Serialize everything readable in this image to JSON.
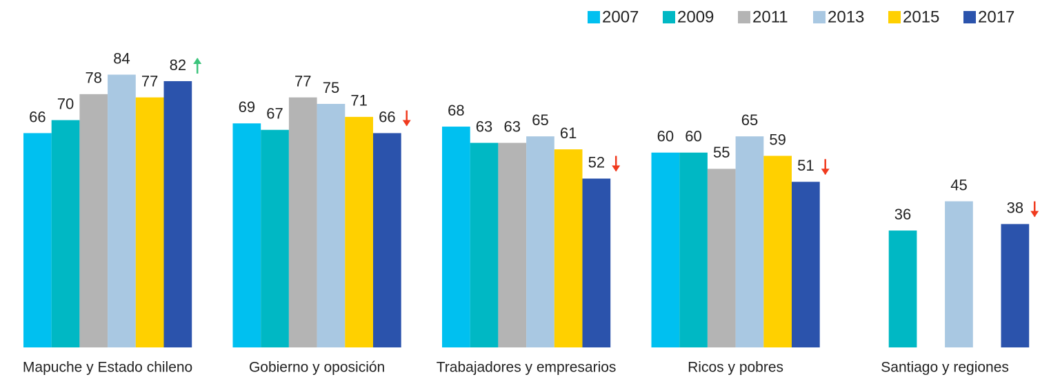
{
  "chart_data": {
    "type": "bar",
    "categories": [
      "Mapuche y Estado chileno",
      "Gobierno y oposición",
      "Trabajadores y empresarios",
      "Ricos y pobres",
      "Santiago y regiones"
    ],
    "series": [
      {
        "name": "2007",
        "color": "#00c0f0",
        "values": [
          66,
          69,
          68,
          60,
          null
        ]
      },
      {
        "name": "2009",
        "color": "#00b8c4",
        "values": [
          70,
          67,
          63,
          60,
          36
        ]
      },
      {
        "name": "2011",
        "color": "#b4b4b4",
        "values": [
          78,
          77,
          63,
          55,
          null
        ]
      },
      {
        "name": "2013",
        "color": "#a9c8e2",
        "values": [
          84,
          75,
          65,
          65,
          45
        ]
      },
      {
        "name": "2015",
        "color": "#ffd000",
        "values": [
          77,
          71,
          61,
          59,
          null
        ]
      },
      {
        "name": "2017",
        "color": "#2b53ac",
        "values": [
          82,
          66,
          52,
          51,
          38
        ]
      }
    ],
    "trend_arrows": [
      {
        "direction": "up",
        "color": "#3cc47c"
      },
      {
        "direction": "down",
        "color": "#f03a1e"
      },
      {
        "direction": "down",
        "color": "#f03a1e"
      },
      {
        "direction": "down",
        "color": "#f03a1e"
      },
      {
        "direction": "down",
        "color": "#f03a1e"
      }
    ],
    "legend": "top-right"
  }
}
